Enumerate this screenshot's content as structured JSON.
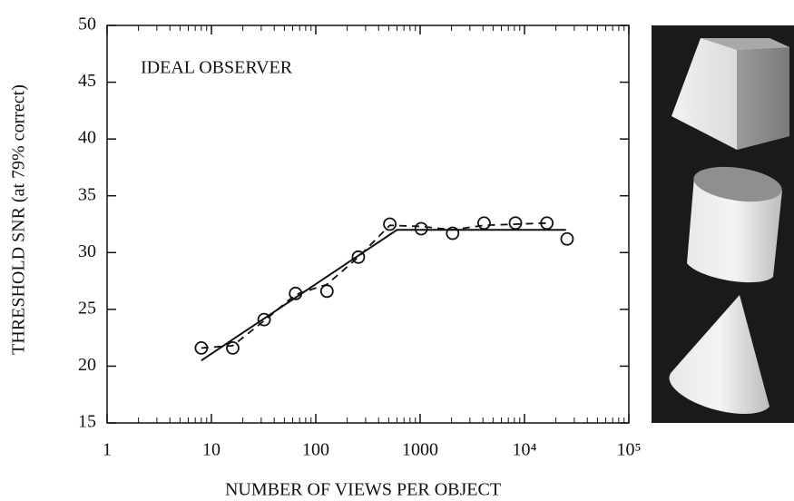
{
  "chart_data": {
    "type": "scatter",
    "annotation": "IDEAL OBSERVER",
    "xlabel": "NUMBER OF VIEWS PER OBJECT",
    "ylabel": "THRESHOLD SNR (at 79% correct)",
    "xscale": "log",
    "x": [
      8,
      16,
      32,
      64,
      128,
      256,
      512,
      1024,
      2048,
      4096,
      8192,
      16384,
      25600
    ],
    "values": [
      21.6,
      21.6,
      24.1,
      26.4,
      26.6,
      29.6,
      32.5,
      32.1,
      31.7,
      32.6,
      32.6,
      32.6,
      31.2
    ],
    "color": "#111111",
    "lines": [
      {
        "style": "solid",
        "x": [
          8,
          600,
          25000
        ],
        "values": [
          20.5,
          32.0,
          32.0
        ]
      },
      {
        "style": "dashed",
        "x": [
          8,
          16,
          32,
          64,
          128,
          256,
          512,
          1024,
          2048,
          4096,
          8192,
          16384
        ],
        "values": [
          21.6,
          21.8,
          24.0,
          26.3,
          27.2,
          29.6,
          32.4,
          32.3,
          32.0,
          32.4,
          32.5,
          32.6
        ]
      }
    ],
    "xlim": [
      1,
      100000
    ],
    "xticks": [
      1,
      10,
      100,
      1000,
      {
        "value": 10000,
        "label": "10⁴"
      },
      {
        "value": 100000,
        "label": "10⁵"
      }
    ],
    "ylim": [
      15,
      50
    ],
    "yticks": [
      15,
      20,
      25,
      30,
      35,
      40,
      45,
      50
    ],
    "minor_ticks": true
  }
}
